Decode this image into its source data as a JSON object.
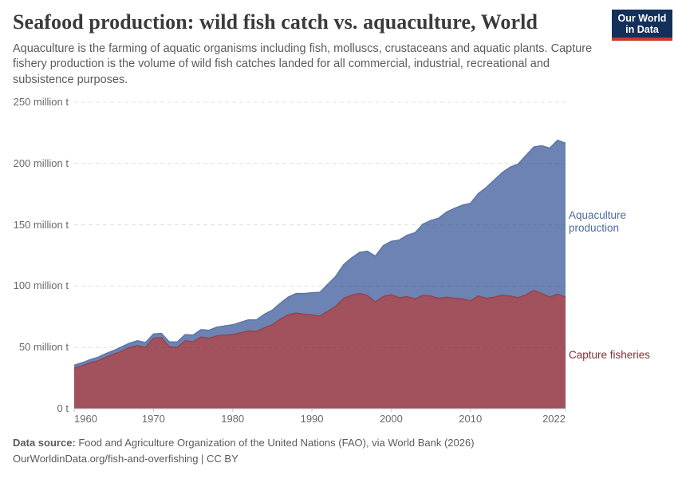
{
  "header": {
    "title": "Seafood production: wild fish catch vs. aquaculture, World",
    "subtitle": "Aquaculture is the farming of aquatic organisms including fish, molluscs, crustaceans and aquatic plants. Capture fishery production is the volume of wild fish catches landed for all commercial, industrial, recreational and subsistence purposes.",
    "logo": {
      "line1": "Our World",
      "line2": "in Data",
      "bg_color": "#12305a",
      "accent_color": "#c9392f"
    }
  },
  "chart_data": {
    "type": "area",
    "stacked": true,
    "title": "Seafood production: wild fish catch vs. aquaculture, World",
    "xlabel": "",
    "ylabel": "",
    "unit": "million t",
    "xlim": [
      1960,
      2022
    ],
    "ylim": [
      0,
      250
    ],
    "grid": "dashed-horizontal",
    "legend_position": "right-direct-labels",
    "x": [
      1960,
      1961,
      1962,
      1963,
      1964,
      1965,
      1966,
      1967,
      1968,
      1969,
      1970,
      1971,
      1972,
      1973,
      1974,
      1975,
      1976,
      1977,
      1978,
      1979,
      1980,
      1981,
      1982,
      1983,
      1984,
      1985,
      1986,
      1987,
      1988,
      1989,
      1990,
      1991,
      1992,
      1993,
      1994,
      1995,
      1996,
      1997,
      1998,
      1999,
      2000,
      2001,
      2002,
      2003,
      2004,
      2005,
      2006,
      2007,
      2008,
      2009,
      2010,
      2011,
      2012,
      2013,
      2014,
      2015,
      2016,
      2017,
      2018,
      2019,
      2020,
      2021,
      2022
    ],
    "series": [
      {
        "name": "Capture fisheries",
        "color": "#a2525c",
        "edge_color": "#95434d",
        "label_color": "#8d2a3a",
        "values": [
          33,
          35,
          37.5,
          39,
          42,
          44.5,
          47,
          50,
          51.5,
          50,
          57.5,
          58,
          50.5,
          50,
          55.5,
          54.5,
          58.5,
          57.5,
          59.5,
          60,
          60.5,
          62,
          63.5,
          63,
          66,
          68.5,
          73,
          76.5,
          78,
          77,
          76.5,
          75.5,
          79.5,
          83.5,
          90,
          92.5,
          94,
          92.5,
          87,
          91.5,
          93,
          90.5,
          91.5,
          89.5,
          92.5,
          92,
          90,
          91,
          90,
          89.5,
          88,
          92,
          90,
          91,
          92.5,
          92,
          90.5,
          93,
          96.5,
          94,
          91,
          93.5,
          91
        ]
      },
      {
        "name": "Aquaculture production",
        "color": "#6c83b4",
        "edge_color": "#5d76a9",
        "label_color": "#4c6a9c",
        "values": [
          2.5,
          2.5,
          2.5,
          3,
          3,
          3,
          3.5,
          3.5,
          4,
          4,
          3.5,
          3.5,
          4,
          4.5,
          5,
          5.5,
          6,
          6.5,
          7,
          7.5,
          8,
          8.5,
          9,
          9.5,
          11,
          12,
          13,
          14.5,
          16,
          17,
          18,
          19.5,
          22,
          24.5,
          27.5,
          30.5,
          33.5,
          36,
          37.5,
          41.5,
          43.5,
          47,
          50,
          54,
          58,
          61.5,
          65.5,
          69.5,
          73.5,
          76.5,
          79.5,
          83.5,
          90.5,
          95.5,
          100,
          105,
          109,
          113.5,
          117,
          120.5,
          121.5,
          125.5,
          125.5
        ]
      }
    ],
    "y_ticks": [
      0,
      50,
      100,
      150,
      200,
      250
    ],
    "y_tick_labels": [
      "0 t",
      "50 million t",
      "100 million t",
      "150 million t",
      "200 million t",
      "250 million t"
    ],
    "x_ticks": [
      1960,
      1970,
      1980,
      1990,
      2000,
      2010,
      2022
    ],
    "x_tick_labels": [
      "1960",
      "1970",
      "1980",
      "1990",
      "2000",
      "2010",
      "2022"
    ],
    "grid_color": "rgba(60,60,60,0.16)",
    "axis_color": "#c9c9c9",
    "tick_label_color": "#696969"
  },
  "footer": {
    "source_bold": "Data source:",
    "source_rest": " Food and Agriculture Organization of the United Nations (FAO), via World Bank (2026)",
    "license_line": "OurWorldinData.org/fish-and-overfishing | CC BY"
  }
}
